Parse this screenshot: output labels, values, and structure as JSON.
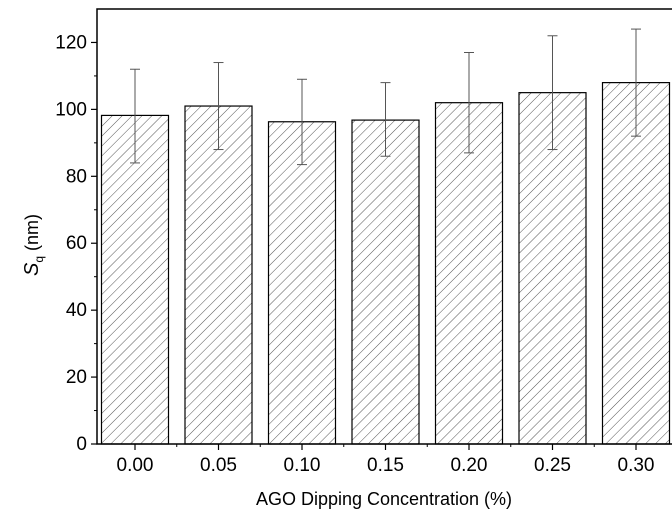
{
  "chart_data": {
    "type": "bar",
    "title": "",
    "xlabel": "AGO Dipping Concentration (%)",
    "ylabel": {
      "symbol": "S",
      "subscript": "q",
      "unit": " (nm)"
    },
    "categories": [
      "0.00",
      "0.05",
      "0.10",
      "0.15",
      "0.20",
      "0.25",
      "0.30"
    ],
    "values": [
      98.2,
      101.0,
      96.3,
      96.8,
      102.0,
      105.0,
      108.0
    ],
    "error_upper": [
      112.0,
      114.0,
      109.0,
      108.0,
      117.0,
      122.0,
      124.0
    ],
    "error_lower": [
      84.0,
      88.0,
      83.5,
      86.0,
      87.0,
      88.0,
      92.0
    ],
    "ylim": [
      0,
      130
    ],
    "yticks": [
      "0",
      "20",
      "40",
      "60",
      "80",
      "100",
      "120"
    ],
    "grid": false,
    "bar_fill": "hatched diagonal",
    "colors": {
      "bar_stroke": "#000000",
      "hatch": "#555555",
      "background": "#ffffff"
    }
  }
}
